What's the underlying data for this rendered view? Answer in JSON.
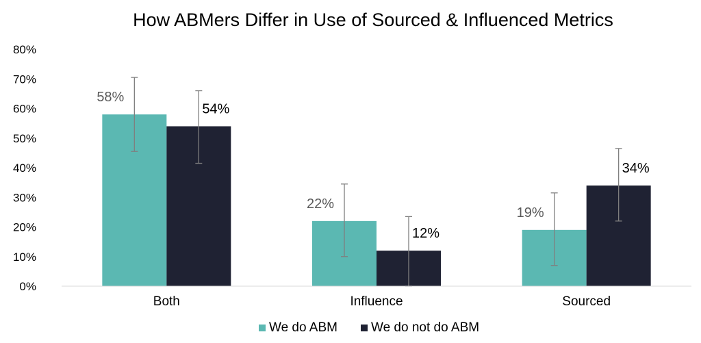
{
  "chart_data": {
    "type": "bar",
    "title": "How ABMers Differ in Use of Sourced & Influenced Metrics",
    "categories": [
      "Both",
      "Influence",
      "Sourced"
    ],
    "series": [
      {
        "name": "We do ABM",
        "color": "#5bb8b2",
        "label_color": "#595959",
        "values": [
          58,
          22,
          19
        ],
        "labels": [
          "58%",
          "22%",
          "19%"
        ],
        "error_low": [
          45.5,
          10,
          7
        ],
        "error_high": [
          70.5,
          34.5,
          31.5
        ]
      },
      {
        "name": "We do not do ABM",
        "color": "#1f2233",
        "label_color": "#000000",
        "values": [
          54,
          12,
          34
        ],
        "labels": [
          "54%",
          "12%",
          "34%"
        ],
        "error_low": [
          41.5,
          0,
          22
        ],
        "error_high": [
          66,
          23.5,
          46.5
        ]
      }
    ],
    "ylim": [
      0,
      80
    ],
    "yticks": [
      "0%",
      "10%",
      "20%",
      "30%",
      "40%",
      "50%",
      "60%",
      "70%",
      "80%"
    ],
    "grid": false,
    "legend_position": "bottom"
  }
}
